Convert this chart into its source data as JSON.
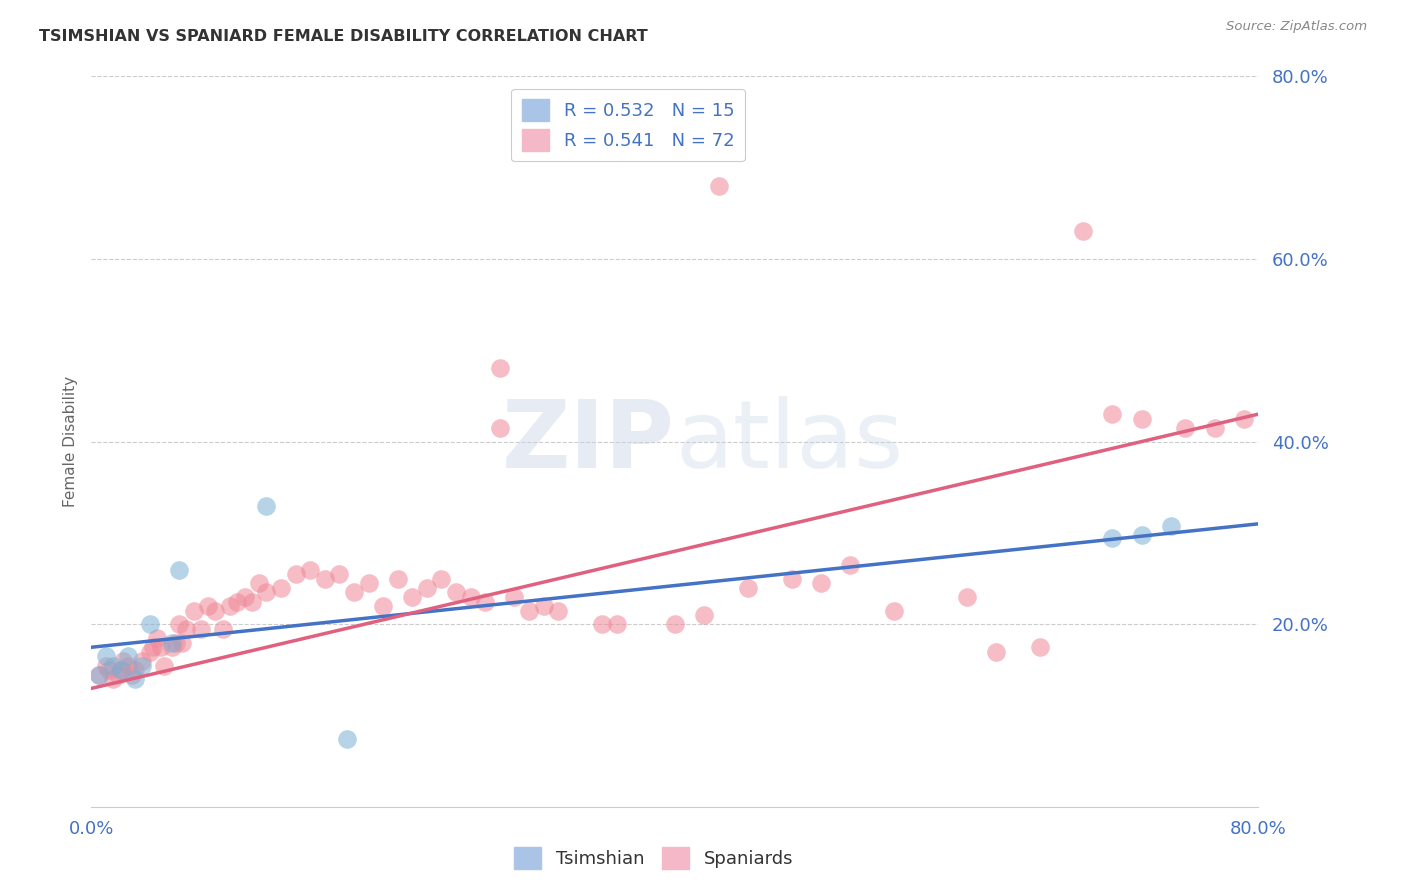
{
  "title": "TSIMSHIAN VS SPANIARD FEMALE DISABILITY CORRELATION CHART",
  "source": "Source: ZipAtlas.com",
  "ylabel": "Female Disability",
  "tsimshian_color": "#7bafd4",
  "spaniard_color": "#f08898",
  "tsimshian_line_color": "#4472c4",
  "spaniard_line_color": "#e06080",
  "xlim": [
    0.0,
    0.8
  ],
  "ylim": [
    0.0,
    0.8
  ],
  "background_color": "#ffffff",
  "grid_color": "#cccccc",
  "tsimshian_R": "0.532",
  "tsimshian_N": "15",
  "spaniard_R": "0.541",
  "spaniard_N": "72",
  "tsimshian_x": [
    0.005,
    0.01,
    0.015,
    0.02,
    0.025,
    0.03,
    0.035,
    0.04,
    0.055,
    0.06,
    0.12,
    0.175,
    0.7,
    0.72,
    0.74
  ],
  "tsimshian_y": [
    0.145,
    0.165,
    0.155,
    0.15,
    0.165,
    0.14,
    0.155,
    0.2,
    0.18,
    0.26,
    0.33,
    0.075,
    0.295,
    0.298,
    0.308
  ],
  "spaniard_x": [
    0.005,
    0.01,
    0.012,
    0.015,
    0.018,
    0.02,
    0.022,
    0.025,
    0.028,
    0.03,
    0.035,
    0.04,
    0.042,
    0.045,
    0.048,
    0.05,
    0.055,
    0.058,
    0.06,
    0.062,
    0.065,
    0.07,
    0.075,
    0.08,
    0.085,
    0.09,
    0.095,
    0.1,
    0.105,
    0.11,
    0.115,
    0.12,
    0.13,
    0.14,
    0.15,
    0.16,
    0.17,
    0.18,
    0.19,
    0.2,
    0.21,
    0.22,
    0.23,
    0.24,
    0.25,
    0.26,
    0.27,
    0.28,
    0.29,
    0.3,
    0.31,
    0.32,
    0.35,
    0.36,
    0.4,
    0.42,
    0.45,
    0.48,
    0.5,
    0.52,
    0.55,
    0.6,
    0.62,
    0.65,
    0.68,
    0.7,
    0.72,
    0.75,
    0.77,
    0.79,
    0.28,
    0.43
  ],
  "spaniard_y": [
    0.145,
    0.155,
    0.15,
    0.14,
    0.145,
    0.15,
    0.16,
    0.155,
    0.145,
    0.15,
    0.16,
    0.17,
    0.175,
    0.185,
    0.175,
    0.155,
    0.175,
    0.18,
    0.2,
    0.18,
    0.195,
    0.215,
    0.195,
    0.22,
    0.215,
    0.195,
    0.22,
    0.225,
    0.23,
    0.225,
    0.245,
    0.235,
    0.24,
    0.255,
    0.26,
    0.25,
    0.255,
    0.235,
    0.245,
    0.22,
    0.25,
    0.23,
    0.24,
    0.25,
    0.235,
    0.23,
    0.225,
    0.48,
    0.23,
    0.215,
    0.22,
    0.215,
    0.2,
    0.2,
    0.2,
    0.21,
    0.24,
    0.25,
    0.245,
    0.265,
    0.215,
    0.23,
    0.17,
    0.175,
    0.63,
    0.43,
    0.425,
    0.415,
    0.415,
    0.425,
    0.415,
    0.68
  ],
  "tsim_line_x0": 0.0,
  "tsim_line_y0": 0.175,
  "tsim_line_x1": 0.8,
  "tsim_line_y1": 0.31,
  "span_line_x0": 0.0,
  "span_line_y0": 0.13,
  "span_line_x1": 0.8,
  "span_line_y1": 0.43
}
